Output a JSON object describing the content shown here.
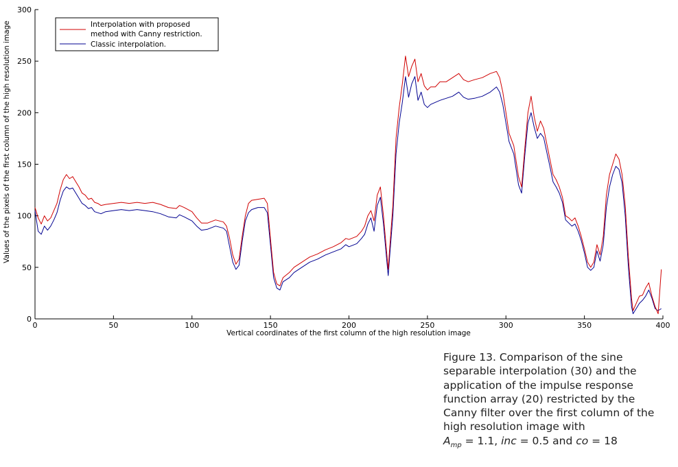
{
  "chart_data": {
    "type": "line",
    "xlabel": "Vertical coordinates of the first column of the high resolution image",
    "ylabel": "Values of the pixels of the first column of the high resolution image",
    "xlim": [
      0,
      400
    ],
    "ylim": [
      0,
      300
    ],
    "xticks": [
      "0",
      "50",
      "100",
      "150",
      "200",
      "250",
      "300",
      "350",
      "400"
    ],
    "yticks": [
      "0",
      "50",
      "100",
      "150",
      "200",
      "250",
      "300"
    ],
    "grid": false,
    "legend_position": "top-left",
    "series": [
      {
        "name": "Interpolation with  proposed method with Canny restriction.",
        "color": "#d00000",
        "points": [
          [
            0,
            108
          ],
          [
            2,
            98
          ],
          [
            4,
            92
          ],
          [
            6,
            100
          ],
          [
            8,
            95
          ],
          [
            10,
            98
          ],
          [
            12,
            105
          ],
          [
            14,
            112
          ],
          [
            16,
            125
          ],
          [
            18,
            135
          ],
          [
            20,
            140
          ],
          [
            22,
            136
          ],
          [
            24,
            138
          ],
          [
            26,
            133
          ],
          [
            28,
            128
          ],
          [
            30,
            122
          ],
          [
            32,
            120
          ],
          [
            34,
            116
          ],
          [
            36,
            117
          ],
          [
            38,
            113
          ],
          [
            40,
            112
          ],
          [
            42,
            110
          ],
          [
            45,
            111
          ],
          [
            50,
            112
          ],
          [
            55,
            113
          ],
          [
            60,
            112
          ],
          [
            65,
            113
          ],
          [
            70,
            112
          ],
          [
            75,
            113
          ],
          [
            80,
            111
          ],
          [
            85,
            108
          ],
          [
            90,
            107
          ],
          [
            92,
            110
          ],
          [
            95,
            108
          ],
          [
            100,
            104
          ],
          [
            103,
            98
          ],
          [
            106,
            93
          ],
          [
            110,
            93
          ],
          [
            115,
            96
          ],
          [
            120,
            94
          ],
          [
            122,
            90
          ],
          [
            124,
            78
          ],
          [
            126,
            62
          ],
          [
            128,
            53
          ],
          [
            130,
            58
          ],
          [
            132,
            80
          ],
          [
            134,
            100
          ],
          [
            136,
            112
          ],
          [
            138,
            115
          ],
          [
            142,
            116
          ],
          [
            146,
            117
          ],
          [
            148,
            112
          ],
          [
            150,
            78
          ],
          [
            152,
            45
          ],
          [
            154,
            34
          ],
          [
            156,
            32
          ],
          [
            158,
            40
          ],
          [
            162,
            45
          ],
          [
            165,
            50
          ],
          [
            170,
            55
          ],
          [
            175,
            60
          ],
          [
            180,
            63
          ],
          [
            185,
            67
          ],
          [
            190,
            70
          ],
          [
            195,
            74
          ],
          [
            198,
            78
          ],
          [
            200,
            77
          ],
          [
            205,
            80
          ],
          [
            208,
            85
          ],
          [
            210,
            90
          ],
          [
            212,
            100
          ],
          [
            214,
            105
          ],
          [
            216,
            95
          ],
          [
            218,
            120
          ],
          [
            220,
            128
          ],
          [
            222,
            100
          ],
          [
            224,
            65
          ],
          [
            225,
            48
          ],
          [
            226,
            70
          ],
          [
            228,
            110
          ],
          [
            230,
            175
          ],
          [
            232,
            205
          ],
          [
            234,
            228
          ],
          [
            236,
            255
          ],
          [
            238,
            235
          ],
          [
            240,
            245
          ],
          [
            242,
            252
          ],
          [
            244,
            230
          ],
          [
            246,
            238
          ],
          [
            248,
            226
          ],
          [
            250,
            222
          ],
          [
            252,
            225
          ],
          [
            255,
            225
          ],
          [
            258,
            230
          ],
          [
            262,
            230
          ],
          [
            266,
            234
          ],
          [
            270,
            238
          ],
          [
            273,
            232
          ],
          [
            276,
            230
          ],
          [
            280,
            232
          ],
          [
            285,
            234
          ],
          [
            290,
            238
          ],
          [
            294,
            240
          ],
          [
            296,
            234
          ],
          [
            298,
            220
          ],
          [
            300,
            200
          ],
          [
            302,
            180
          ],
          [
            305,
            168
          ],
          [
            308,
            138
          ],
          [
            310,
            128
          ],
          [
            312,
            165
          ],
          [
            314,
            200
          ],
          [
            316,
            216
          ],
          [
            318,
            196
          ],
          [
            320,
            182
          ],
          [
            322,
            192
          ],
          [
            324,
            185
          ],
          [
            326,
            170
          ],
          [
            328,
            155
          ],
          [
            330,
            140
          ],
          [
            332,
            135
          ],
          [
            334,
            128
          ],
          [
            336,
            118
          ],
          [
            338,
            100
          ],
          [
            340,
            98
          ],
          [
            342,
            95
          ],
          [
            344,
            98
          ],
          [
            346,
            90
          ],
          [
            348,
            80
          ],
          [
            350,
            68
          ],
          [
            352,
            55
          ],
          [
            354,
            50
          ],
          [
            356,
            55
          ],
          [
            358,
            72
          ],
          [
            360,
            62
          ],
          [
            362,
            80
          ],
          [
            364,
            120
          ],
          [
            366,
            140
          ],
          [
            368,
            150
          ],
          [
            370,
            160
          ],
          [
            372,
            155
          ],
          [
            374,
            140
          ],
          [
            376,
            110
          ],
          [
            378,
            60
          ],
          [
            380,
            20
          ],
          [
            381,
            8
          ],
          [
            383,
            15
          ],
          [
            385,
            22
          ],
          [
            387,
            23
          ],
          [
            389,
            30
          ],
          [
            391,
            35
          ],
          [
            393,
            22
          ],
          [
            395,
            12
          ],
          [
            397,
            5
          ],
          [
            399,
            48
          ]
        ]
      },
      {
        "name": "Classic interpolation.",
        "color": "#000090",
        "points": [
          [
            0,
            105
          ],
          [
            2,
            85
          ],
          [
            4,
            82
          ],
          [
            6,
            90
          ],
          [
            8,
            86
          ],
          [
            10,
            90
          ],
          [
            12,
            96
          ],
          [
            14,
            103
          ],
          [
            16,
            115
          ],
          [
            18,
            124
          ],
          [
            20,
            128
          ],
          [
            22,
            126
          ],
          [
            24,
            127
          ],
          [
            26,
            122
          ],
          [
            28,
            117
          ],
          [
            30,
            112
          ],
          [
            32,
            110
          ],
          [
            34,
            107
          ],
          [
            36,
            108
          ],
          [
            38,
            104
          ],
          [
            40,
            103
          ],
          [
            42,
            102
          ],
          [
            45,
            104
          ],
          [
            50,
            105
          ],
          [
            55,
            106
          ],
          [
            60,
            105
          ],
          [
            65,
            106
          ],
          [
            70,
            105
          ],
          [
            75,
            104
          ],
          [
            80,
            102
          ],
          [
            85,
            99
          ],
          [
            90,
            98
          ],
          [
            92,
            101
          ],
          [
            95,
            99
          ],
          [
            100,
            95
          ],
          [
            103,
            90
          ],
          [
            106,
            86
          ],
          [
            110,
            87
          ],
          [
            115,
            90
          ],
          [
            120,
            88
          ],
          [
            122,
            85
          ],
          [
            124,
            70
          ],
          [
            126,
            55
          ],
          [
            128,
            48
          ],
          [
            130,
            52
          ],
          [
            132,
            75
          ],
          [
            134,
            95
          ],
          [
            136,
            103
          ],
          [
            138,
            106
          ],
          [
            142,
            108
          ],
          [
            146,
            108
          ],
          [
            148,
            103
          ],
          [
            150,
            72
          ],
          [
            152,
            40
          ],
          [
            154,
            30
          ],
          [
            156,
            28
          ],
          [
            158,
            36
          ],
          [
            162,
            40
          ],
          [
            165,
            45
          ],
          [
            170,
            50
          ],
          [
            175,
            55
          ],
          [
            180,
            58
          ],
          [
            185,
            62
          ],
          [
            190,
            65
          ],
          [
            195,
            68
          ],
          [
            198,
            72
          ],
          [
            200,
            70
          ],
          [
            205,
            73
          ],
          [
            208,
            78
          ],
          [
            210,
            82
          ],
          [
            212,
            92
          ],
          [
            214,
            98
          ],
          [
            216,
            85
          ],
          [
            218,
            110
          ],
          [
            220,
            118
          ],
          [
            222,
            92
          ],
          [
            224,
            58
          ],
          [
            225,
            42
          ],
          [
            226,
            62
          ],
          [
            228,
            100
          ],
          [
            230,
            160
          ],
          [
            232,
            190
          ],
          [
            234,
            210
          ],
          [
            236,
            235
          ],
          [
            238,
            215
          ],
          [
            240,
            228
          ],
          [
            242,
            235
          ],
          [
            244,
            212
          ],
          [
            246,
            220
          ],
          [
            248,
            208
          ],
          [
            250,
            205
          ],
          [
            252,
            208
          ],
          [
            255,
            210
          ],
          [
            258,
            212
          ],
          [
            262,
            214
          ],
          [
            266,
            216
          ],
          [
            270,
            220
          ],
          [
            273,
            215
          ],
          [
            276,
            213
          ],
          [
            280,
            214
          ],
          [
            285,
            216
          ],
          [
            290,
            220
          ],
          [
            294,
            225
          ],
          [
            296,
            220
          ],
          [
            298,
            208
          ],
          [
            300,
            190
          ],
          [
            302,
            172
          ],
          [
            305,
            160
          ],
          [
            308,
            130
          ],
          [
            310,
            122
          ],
          [
            312,
            158
          ],
          [
            314,
            190
          ],
          [
            316,
            200
          ],
          [
            318,
            186
          ],
          [
            320,
            175
          ],
          [
            322,
            180
          ],
          [
            324,
            176
          ],
          [
            326,
            162
          ],
          [
            328,
            148
          ],
          [
            330,
            133
          ],
          [
            332,
            128
          ],
          [
            334,
            122
          ],
          [
            336,
            113
          ],
          [
            338,
            96
          ],
          [
            340,
            93
          ],
          [
            342,
            90
          ],
          [
            344,
            92
          ],
          [
            346,
            85
          ],
          [
            348,
            76
          ],
          [
            350,
            64
          ],
          [
            352,
            50
          ],
          [
            354,
            47
          ],
          [
            356,
            50
          ],
          [
            358,
            66
          ],
          [
            360,
            56
          ],
          [
            362,
            72
          ],
          [
            364,
            108
          ],
          [
            366,
            128
          ],
          [
            368,
            140
          ],
          [
            370,
            148
          ],
          [
            372,
            145
          ],
          [
            374,
            132
          ],
          [
            376,
            100
          ],
          [
            378,
            50
          ],
          [
            380,
            12
          ],
          [
            381,
            5
          ],
          [
            383,
            10
          ],
          [
            385,
            15
          ],
          [
            387,
            18
          ],
          [
            389,
            22
          ],
          [
            391,
            28
          ],
          [
            393,
            20
          ],
          [
            395,
            10
          ],
          [
            397,
            8
          ],
          [
            399,
            10
          ]
        ]
      }
    ]
  },
  "caption": {
    "lines": [
      "Figure 13.  Comparison of the sine",
      "separable interpolation (30) and the",
      "application of the impulse response",
      "function array (20) restricted by the",
      "Canny filter over the first column of the",
      "high resolution image with"
    ],
    "last_line": {
      "amp_symbol": "A",
      "amp_sub": "mp",
      "amp_value": " = 1.1, ",
      "inc_symbol": "inc",
      "inc_value": " = 0.5 and ",
      "co_symbol": "co",
      "co_value": " = 18"
    }
  }
}
